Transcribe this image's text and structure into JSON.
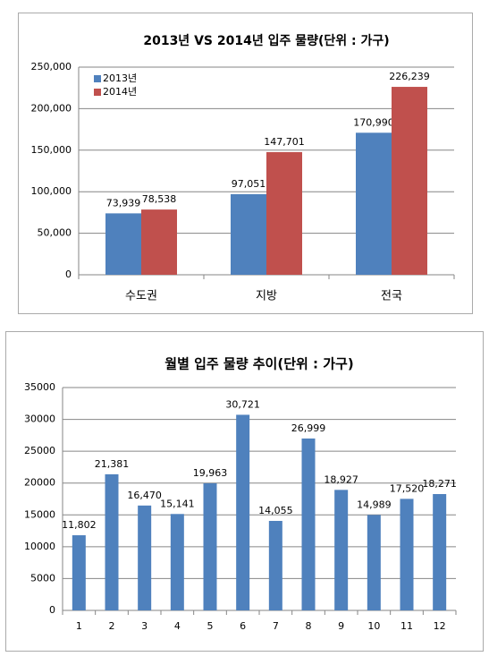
{
  "chart_data": [
    {
      "type": "bar",
      "title": "2013년  VS 2014년 입주 물량(단위 : 가구)",
      "categories": [
        "수도권",
        "지방",
        "전국"
      ],
      "series": [
        {
          "name": "2013년",
          "color": "#4f81bd",
          "values": [
            73939,
            97051,
            170990
          ],
          "value_labels": [
            "73,939",
            "97,051",
            "170,990"
          ]
        },
        {
          "name": "2014년",
          "color": "#c0504d",
          "values": [
            78538,
            147701,
            226239
          ],
          "value_labels": [
            "78,538",
            "147,701",
            "226,239"
          ]
        }
      ],
      "ylim": [
        0,
        250000
      ],
      "yticks": [
        0,
        {
          "value": 50000,
          "label": "50,000"
        },
        {
          "value": 100000,
          "label": "100,000"
        },
        {
          "value": 150000,
          "label": "150,000"
        },
        {
          "value": 200000,
          "label": "200,000"
        },
        {
          "value": 250000,
          "label": "250,000"
        }
      ],
      "grid": true,
      "legend": "top-left"
    },
    {
      "type": "bar",
      "title": "월별 입주 물량 추이(단위 : 가구)",
      "categories": [
        "1",
        "2",
        "3",
        "4",
        "5",
        "6",
        "7",
        "8",
        "9",
        "10",
        "11",
        "12"
      ],
      "series": [
        {
          "color": "#4f81bd",
          "values": [
            11802,
            21381,
            16470,
            15141,
            19963,
            30721,
            14055,
            26999,
            18927,
            14989,
            17520,
            18271
          ],
          "value_labels": [
            "11,802",
            "21,381",
            "16,470",
            "15,141",
            "19,963",
            "30,721",
            "14,055",
            "26,999",
            "18,927",
            "14,989",
            "17,520",
            "18,271"
          ]
        }
      ],
      "ylim": [
        0,
        35000
      ],
      "yticks": [
        0,
        5000,
        10000,
        15000,
        20000,
        25000,
        30000,
        35000
      ],
      "grid": true
    }
  ]
}
